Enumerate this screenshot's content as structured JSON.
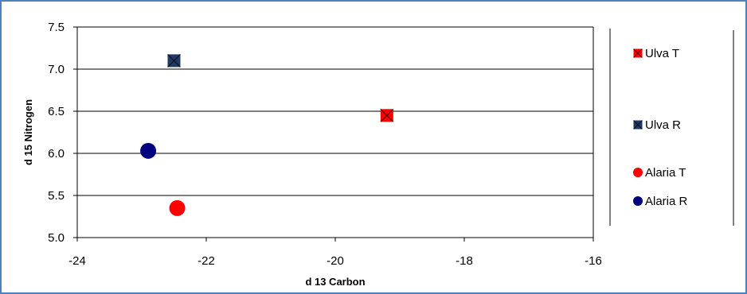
{
  "chart_data": {
    "type": "scatter",
    "xlabel": "d 13 Carbon",
    "ylabel": "d 15 Nitrogen",
    "xlim": [
      -24,
      -16
    ],
    "ylim": [
      5.0,
      7.5
    ],
    "x_ticks": [
      -24,
      -22,
      -20,
      -18,
      -16
    ],
    "y_ticks": [
      5.0,
      5.5,
      6.0,
      6.5,
      7.0,
      7.5
    ],
    "x_tick_labels": [
      "-24",
      "-22",
      "-20",
      "-18",
      "-16"
    ],
    "y_tick_labels": [
      "5.0",
      "5.5",
      "6.0",
      "6.5",
      "7.0",
      "7.5"
    ],
    "grid": "horizontal",
    "legend_position": "right",
    "series": [
      {
        "name": "Ulva T",
        "marker": "square-x",
        "color": "#ff0000",
        "points": [
          {
            "x": -19.2,
            "y": 6.45
          }
        ]
      },
      {
        "name": "Ulva R",
        "marker": "square-x",
        "color": "#1f3864",
        "points": [
          {
            "x": -22.5,
            "y": 7.1
          }
        ]
      },
      {
        "name": "Alaria T",
        "marker": "circle",
        "color": "#ff0000",
        "points": [
          {
            "x": -22.45,
            "y": 5.35
          }
        ]
      },
      {
        "name": "Alaria R",
        "marker": "circle",
        "color": "#000080",
        "points": [
          {
            "x": -22.9,
            "y": 6.03
          }
        ]
      }
    ]
  }
}
